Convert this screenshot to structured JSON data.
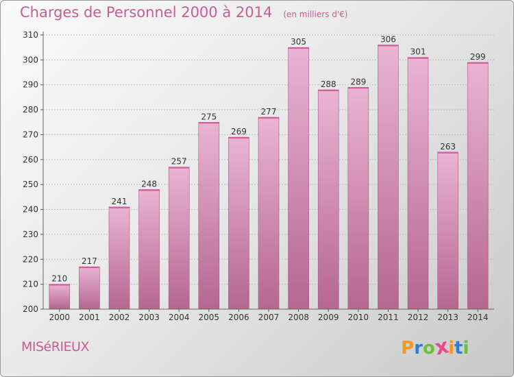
{
  "title": "Charges de Personnel 2000 à 2014",
  "unit": "(en milliers d'€)",
  "place": "MISéRIEUX",
  "logo": {
    "letters": [
      "P",
      "r",
      "o",
      "x",
      "i",
      "t",
      "i"
    ],
    "colors": [
      "#f39a1e",
      "#2f7fd0",
      "#6cbf3a",
      "#e84b8a",
      "#f39a1e",
      "#2f7fd0",
      "#6cbf3a"
    ]
  },
  "colors": {
    "bar_light": "#eab4d3",
    "bar_dark": "#b5678f",
    "title": "#c65d94",
    "grid": "#bdbdbd"
  },
  "chart_data": {
    "type": "bar",
    "title": "Charges de Personnel 2000 à 2014",
    "subtitle": "(en milliers d'€)",
    "xlabel": "",
    "ylabel": "",
    "categories": [
      "2000",
      "2001",
      "2002",
      "2003",
      "2004",
      "2005",
      "2006",
      "2007",
      "2008",
      "2009",
      "2010",
      "2011",
      "2012",
      "2013",
      "2014"
    ],
    "values": [
      210,
      217,
      241,
      248,
      257,
      275,
      269,
      277,
      305,
      288,
      289,
      306,
      301,
      263,
      299
    ],
    "ylim": [
      200,
      310
    ],
    "yticks": [
      200,
      210,
      220,
      230,
      240,
      250,
      260,
      270,
      280,
      290,
      300,
      310
    ],
    "grid": true,
    "legend": "none"
  }
}
